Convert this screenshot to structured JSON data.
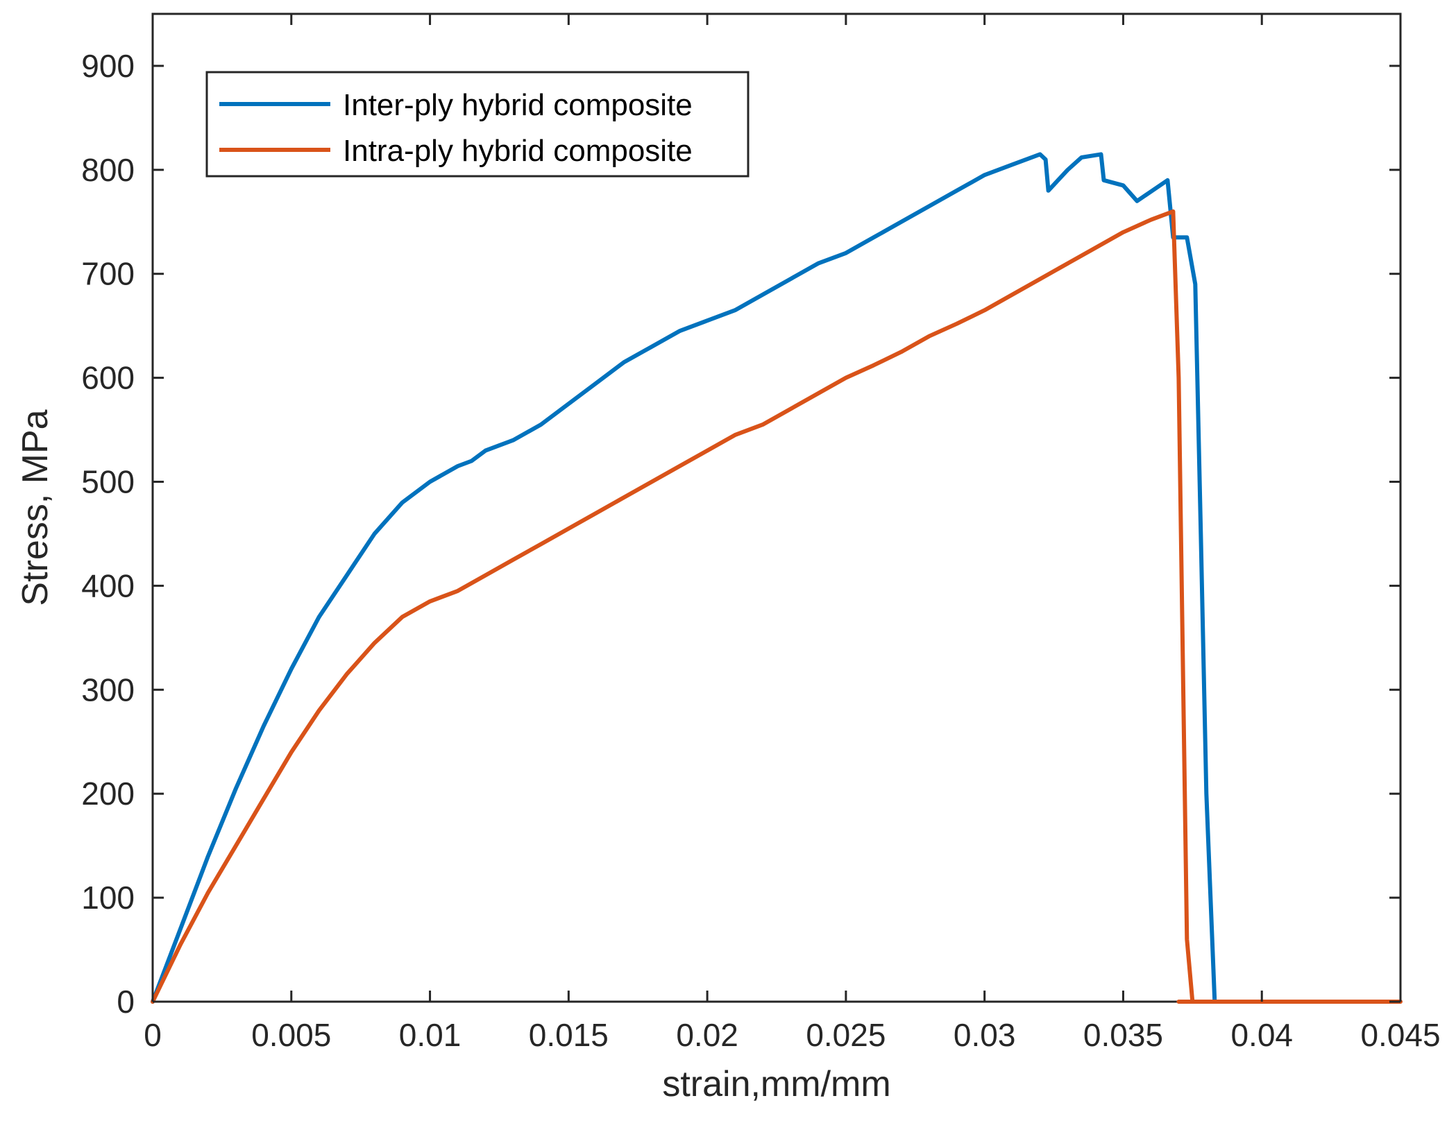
{
  "chart_data": {
    "type": "line",
    "title": "",
    "xlabel": "strain,mm/mm",
    "ylabel": "Stress, MPa",
    "xlim": [
      0,
      0.045
    ],
    "ylim": [
      0,
      950
    ],
    "xticks": [
      0,
      0.005,
      0.01,
      0.015,
      0.02,
      0.025,
      0.03,
      0.035,
      0.04,
      0.045
    ],
    "xtick_labels": [
      "0",
      "0.005",
      "0.01",
      "0.015",
      "0.02",
      "0.025",
      "0.03",
      "0.035",
      "0.04",
      "0.045"
    ],
    "yticks": [
      0,
      100,
      200,
      300,
      400,
      500,
      600,
      700,
      800,
      900
    ],
    "ytick_labels": [
      "0",
      "100",
      "200",
      "300",
      "400",
      "500",
      "600",
      "700",
      "800",
      "900"
    ],
    "grid": false,
    "legend_position": "top-left",
    "series": [
      {
        "name": "Inter-ply hybrid composite",
        "color": "#0072BD",
        "x": [
          0,
          0.001,
          0.002,
          0.003,
          0.004,
          0.005,
          0.006,
          0.007,
          0.008,
          0.009,
          0.01,
          0.011,
          0.0115,
          0.012,
          0.0125,
          0.013,
          0.014,
          0.015,
          0.016,
          0.017,
          0.018,
          0.019,
          0.02,
          0.021,
          0.022,
          0.023,
          0.024,
          0.025,
          0.026,
          0.027,
          0.028,
          0.029,
          0.03,
          0.031,
          0.032,
          0.0322,
          0.0323,
          0.033,
          0.0335,
          0.0342,
          0.0343,
          0.035,
          0.0355,
          0.0366,
          0.0368,
          0.0373,
          0.0376,
          0.0378,
          0.038,
          0.0383,
          0.0385,
          0.0386,
          0.0387
        ],
        "y": [
          0,
          70,
          140,
          205,
          265,
          320,
          370,
          410,
          450,
          480,
          500,
          515,
          520,
          530,
          535,
          540,
          555,
          575,
          595,
          615,
          630,
          645,
          655,
          665,
          680,
          695,
          710,
          720,
          735,
          750,
          765,
          780,
          795,
          805,
          815,
          810,
          780,
          800,
          812,
          815,
          790,
          785,
          770,
          790,
          735,
          735,
          690,
          450,
          200,
          0,
          0,
          0,
          0
        ]
      },
      {
        "name": "Intra-ply hybrid composite",
        "color": "#D95319",
        "x": [
          0,
          0.001,
          0.002,
          0.003,
          0.004,
          0.005,
          0.006,
          0.007,
          0.008,
          0.009,
          0.01,
          0.011,
          0.012,
          0.013,
          0.014,
          0.015,
          0.016,
          0.017,
          0.018,
          0.019,
          0.02,
          0.021,
          0.022,
          0.023,
          0.024,
          0.025,
          0.026,
          0.027,
          0.028,
          0.029,
          0.03,
          0.031,
          0.032,
          0.033,
          0.034,
          0.035,
          0.036,
          0.0368,
          0.037,
          0.0373,
          0.0375,
          0.0373,
          0.037,
          0.038,
          0.04,
          0.045
        ],
        "y": [
          0,
          55,
          105,
          150,
          195,
          240,
          280,
          315,
          345,
          370,
          385,
          395,
          410,
          425,
          440,
          455,
          470,
          485,
          500,
          515,
          530,
          545,
          555,
          570,
          585,
          600,
          612,
          625,
          640,
          652,
          665,
          680,
          695,
          710,
          725,
          740,
          752,
          760,
          600,
          60,
          0,
          0,
          0,
          0,
          0,
          0
        ]
      }
    ]
  }
}
